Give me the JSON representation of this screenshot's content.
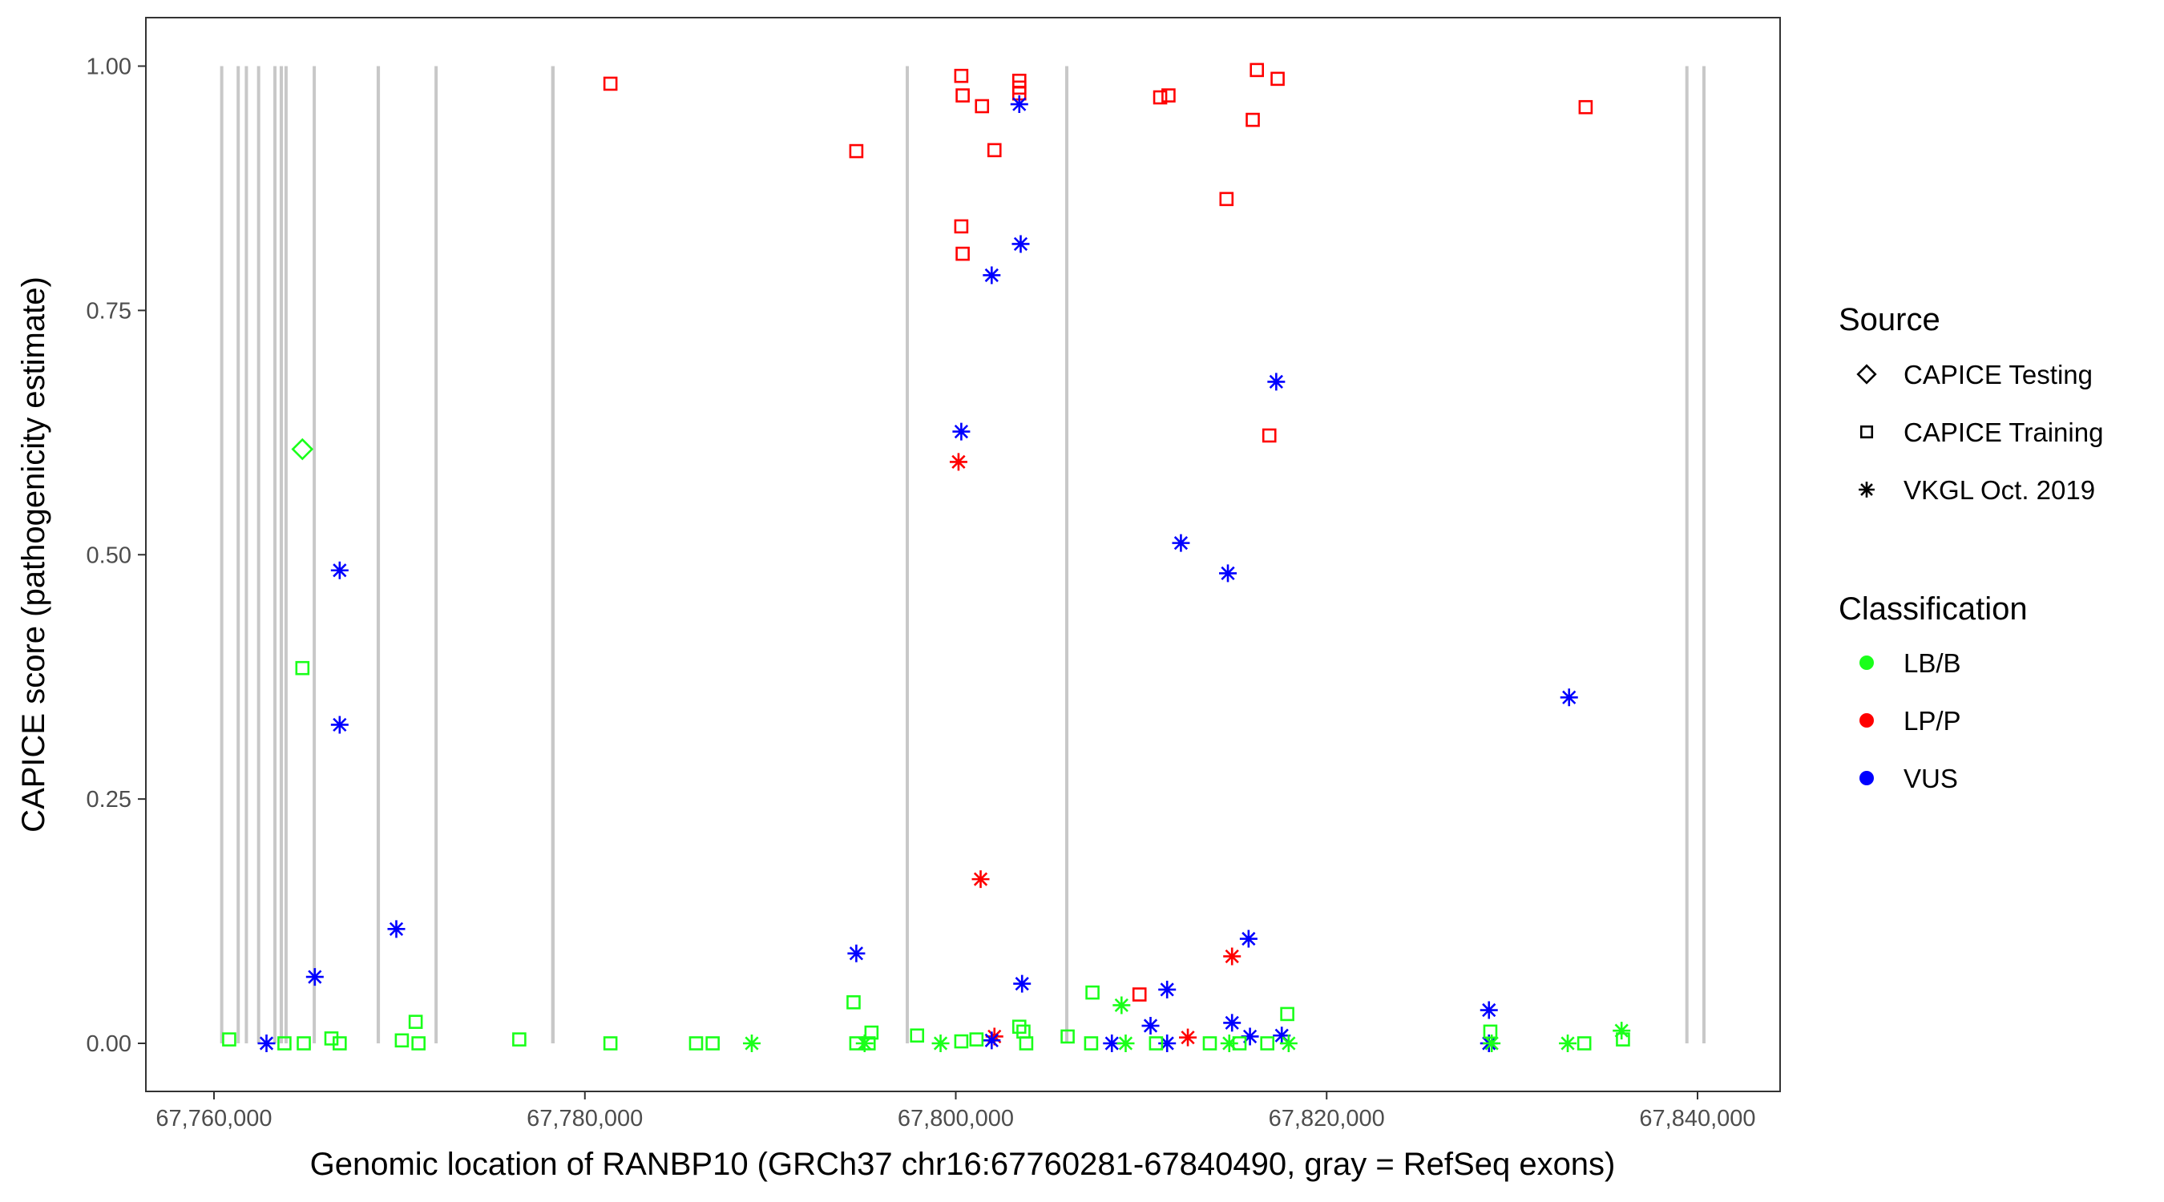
{
  "chart_data": {
    "type": "scatter",
    "title": "",
    "xlabel": "Genomic location of RANBP10 (GRCh37 chr16:67760281-67840490, gray = RefSeq exons)",
    "ylabel": "CAPICE score (pathogenicity estimate)",
    "xlim": [
      67756500,
      67846500
    ],
    "ylim": [
      -0.045,
      1.047
    ],
    "x_ticks": [
      67760000,
      67780000,
      67800000,
      67820000,
      67840000
    ],
    "x_tick_labels": [
      "67,760,000",
      "67,780,000",
      "67,800,000",
      "67,820,000",
      "67,840,000"
    ],
    "y_ticks": [
      0,
      0.25,
      0.5,
      0.75,
      1.0
    ],
    "y_tick_labels": [
      "0.00",
      "0.25",
      "0.50",
      "0.75",
      "1.00"
    ],
    "grid": false,
    "legend_placement": "right",
    "exon_color": "#c8c8c8",
    "exons": [
      {
        "start": 67760330,
        "end": 67760480
      },
      {
        "start": 67761220,
        "end": 67761330
      },
      {
        "start": 67761660,
        "end": 67761790
      },
      {
        "start": 67762320,
        "end": 67762470
      },
      {
        "start": 67763200,
        "end": 67763370
      },
      {
        "start": 67763540,
        "end": 67763720
      },
      {
        "start": 67763800,
        "end": 67763960
      },
      {
        "start": 67765320,
        "end": 67765470
      },
      {
        "start": 67768770,
        "end": 67768950
      },
      {
        "start": 67771890,
        "end": 67772000
      },
      {
        "start": 67778180,
        "end": 67778370
      },
      {
        "start": 67797300,
        "end": 67797440
      },
      {
        "start": 67805900,
        "end": 67806050
      },
      {
        "start": 67839340,
        "end": 67839490
      },
      {
        "start": 67840260,
        "end": 67840410
      }
    ],
    "legends": {
      "source": {
        "title": "Source",
        "entries": [
          {
            "label": "CAPICE Testing",
            "shape": "diamond"
          },
          {
            "label": "CAPICE Training",
            "shape": "square"
          },
          {
            "label": "VKGL Oct. 2019",
            "shape": "asterisk"
          }
        ]
      },
      "classification": {
        "title": "Classification",
        "entries": [
          {
            "label": "LB/B",
            "color": "#1aff1a"
          },
          {
            "label": "LP/P",
            "color": "#ff0000"
          },
          {
            "label": "VUS",
            "color": "#0000ff"
          }
        ]
      }
    },
    "points": [
      {
        "x": 67764767,
        "y": 0.608,
        "source": "CAPICE Testing",
        "class": "LB/B"
      },
      {
        "x": 67781378,
        "y": 0.982,
        "source": "CAPICE Training",
        "class": "LP/P"
      },
      {
        "x": 67794637,
        "y": 0.913,
        "source": "CAPICE Training",
        "class": "LP/P"
      },
      {
        "x": 67800298,
        "y": 0.99,
        "source": "CAPICE Training",
        "class": "LP/P"
      },
      {
        "x": 67800372,
        "y": 0.97,
        "source": "CAPICE Training",
        "class": "LP/P"
      },
      {
        "x": 67801415,
        "y": 0.959,
        "source": "CAPICE Training",
        "class": "LP/P"
      },
      {
        "x": 67802086,
        "y": 0.914,
        "source": "CAPICE Training",
        "class": "LP/P"
      },
      {
        "x": 67803426,
        "y": 0.985,
        "source": "CAPICE Training",
        "class": "LP/P"
      },
      {
        "x": 67803426,
        "y": 0.978,
        "source": "CAPICE Training",
        "class": "LP/P"
      },
      {
        "x": 67803426,
        "y": 0.972,
        "source": "CAPICE Training",
        "class": "LP/P"
      },
      {
        "x": 67800298,
        "y": 0.836,
        "source": "CAPICE Training",
        "class": "LP/P"
      },
      {
        "x": 67800372,
        "y": 0.808,
        "source": "CAPICE Training",
        "class": "LP/P"
      },
      {
        "x": 67811024,
        "y": 0.968,
        "source": "CAPICE Training",
        "class": "LP/P"
      },
      {
        "x": 67811471,
        "y": 0.97,
        "source": "CAPICE Training",
        "class": "LP/P"
      },
      {
        "x": 67816238,
        "y": 0.996,
        "source": "CAPICE Training",
        "class": "LP/P"
      },
      {
        "x": 67817356,
        "y": 0.987,
        "source": "CAPICE Training",
        "class": "LP/P"
      },
      {
        "x": 67816015,
        "y": 0.945,
        "source": "CAPICE Training",
        "class": "LP/P"
      },
      {
        "x": 67814600,
        "y": 0.864,
        "source": "CAPICE Training",
        "class": "LP/P"
      },
      {
        "x": 67816909,
        "y": 0.622,
        "source": "CAPICE Training",
        "class": "LP/P"
      },
      {
        "x": 67833966,
        "y": 0.958,
        "source": "CAPICE Training",
        "class": "LP/P"
      },
      {
        "x": 67809907,
        "y": 0.05,
        "source": "CAPICE Training",
        "class": "LP/P"
      },
      {
        "x": 67800149,
        "y": 0.595,
        "source": "VKGL Oct. 2019",
        "class": "LP/P"
      },
      {
        "x": 67801341,
        "y": 0.168,
        "source": "VKGL Oct. 2019",
        "class": "LP/P"
      },
      {
        "x": 67814898,
        "y": 0.089,
        "source": "VKGL Oct. 2019",
        "class": "LP/P"
      },
      {
        "x": 67802086,
        "y": 0.007,
        "source": "VKGL Oct. 2019",
        "class": "LP/P"
      },
      {
        "x": 67812514,
        "y": 0.006,
        "source": "VKGL Oct. 2019",
        "class": "LP/P"
      },
      {
        "x": 67803426,
        "y": 0.961,
        "source": "VKGL Oct. 2019",
        "class": "VUS"
      },
      {
        "x": 67803501,
        "y": 0.818,
        "source": "VKGL Oct. 2019",
        "class": "VUS"
      },
      {
        "x": 67801937,
        "y": 0.786,
        "source": "VKGL Oct. 2019",
        "class": "VUS"
      },
      {
        "x": 67800298,
        "y": 0.626,
        "source": "VKGL Oct. 2019",
        "class": "VUS"
      },
      {
        "x": 67817281,
        "y": 0.677,
        "source": "VKGL Oct. 2019",
        "class": "VUS"
      },
      {
        "x": 67812142,
        "y": 0.512,
        "source": "VKGL Oct. 2019",
        "class": "VUS"
      },
      {
        "x": 67814674,
        "y": 0.481,
        "source": "VKGL Oct. 2019",
        "class": "VUS"
      },
      {
        "x": 67766778,
        "y": 0.484,
        "source": "VKGL Oct. 2019",
        "class": "VUS"
      },
      {
        "x": 67766778,
        "y": 0.326,
        "source": "VKGL Oct. 2019",
        "class": "VUS"
      },
      {
        "x": 67765438,
        "y": 0.068,
        "source": "VKGL Oct. 2019",
        "class": "VUS"
      },
      {
        "x": 67769832,
        "y": 0.117,
        "source": "VKGL Oct. 2019",
        "class": "VUS"
      },
      {
        "x": 67794637,
        "y": 0.092,
        "source": "VKGL Oct. 2019",
        "class": "VUS"
      },
      {
        "x": 67803575,
        "y": 0.061,
        "source": "VKGL Oct. 2019",
        "class": "VUS"
      },
      {
        "x": 67815791,
        "y": 0.107,
        "source": "VKGL Oct. 2019",
        "class": "VUS"
      },
      {
        "x": 67811397,
        "y": 0.055,
        "source": "VKGL Oct. 2019",
        "class": "VUS"
      },
      {
        "x": 67810503,
        "y": 0.018,
        "source": "VKGL Oct. 2019",
        "class": "VUS"
      },
      {
        "x": 67814898,
        "y": 0.021,
        "source": "VKGL Oct. 2019",
        "class": "VUS"
      },
      {
        "x": 67833073,
        "y": 0.354,
        "source": "VKGL Oct. 2019",
        "class": "VUS"
      },
      {
        "x": 67828752,
        "y": 0.034,
        "source": "VKGL Oct. 2019",
        "class": "VUS"
      },
      {
        "x": 67817579,
        "y": 0.008,
        "source": "VKGL Oct. 2019",
        "class": "VUS"
      },
      {
        "x": 67815865,
        "y": 0.007,
        "source": "VKGL Oct. 2019",
        "class": "VUS"
      },
      {
        "x": 67808417,
        "y": 0.0,
        "source": "VKGL Oct. 2019",
        "class": "VUS"
      },
      {
        "x": 67811397,
        "y": 0.0,
        "source": "VKGL Oct. 2019",
        "class": "VUS"
      },
      {
        "x": 67762831,
        "y": 0.0,
        "source": "VKGL Oct. 2019",
        "class": "VUS"
      },
      {
        "x": 67828752,
        "y": 0.0,
        "source": "VKGL Oct. 2019",
        "class": "VUS"
      },
      {
        "x": 67801937,
        "y": 0.003,
        "source": "VKGL Oct. 2019",
        "class": "VUS"
      },
      {
        "x": 67764767,
        "y": 0.384,
        "source": "CAPICE Training",
        "class": "LB/B"
      },
      {
        "x": 67770875,
        "y": 0.022,
        "source": "CAPICE Training",
        "class": "LB/B"
      },
      {
        "x": 67766331,
        "y": 0.005,
        "source": "CAPICE Training",
        "class": "LB/B"
      },
      {
        "x": 67760819,
        "y": 0.004,
        "source": "CAPICE Training",
        "class": "LB/B"
      },
      {
        "x": 67763799,
        "y": 0.0,
        "source": "CAPICE Training",
        "class": "LB/B"
      },
      {
        "x": 67764842,
        "y": 0.0,
        "source": "CAPICE Training",
        "class": "LB/B"
      },
      {
        "x": 67766778,
        "y": 0.0,
        "source": "CAPICE Training",
        "class": "LB/B"
      },
      {
        "x": 67770130,
        "y": 0.003,
        "source": "CAPICE Training",
        "class": "LB/B"
      },
      {
        "x": 67771028,
        "y": 0.0,
        "source": "CAPICE Training",
        "class": "LB/B"
      },
      {
        "x": 67776462,
        "y": 0.004,
        "source": "CAPICE Training",
        "class": "LB/B"
      },
      {
        "x": 67781378,
        "y": 0.0,
        "source": "CAPICE Training",
        "class": "LB/B"
      },
      {
        "x": 67785996,
        "y": 0.0,
        "source": "CAPICE Training",
        "class": "LB/B"
      },
      {
        "x": 67786890,
        "y": 0.0,
        "source": "CAPICE Training",
        "class": "LB/B"
      },
      {
        "x": 67794488,
        "y": 0.042,
        "source": "CAPICE Training",
        "class": "LB/B"
      },
      {
        "x": 67795456,
        "y": 0.011,
        "source": "CAPICE Training",
        "class": "LB/B"
      },
      {
        "x": 67794637,
        "y": 0.0,
        "source": "CAPICE Training",
        "class": "LB/B"
      },
      {
        "x": 67795300,
        "y": 0.0,
        "source": "CAPICE Training",
        "class": "LB/B"
      },
      {
        "x": 67797914,
        "y": 0.008,
        "source": "CAPICE Training",
        "class": "LB/B"
      },
      {
        "x": 67800298,
        "y": 0.002,
        "source": "CAPICE Training",
        "class": "LB/B"
      },
      {
        "x": 67801117,
        "y": 0.004,
        "source": "CAPICE Training",
        "class": "LB/B"
      },
      {
        "x": 67803426,
        "y": 0.017,
        "source": "CAPICE Training",
        "class": "LB/B"
      },
      {
        "x": 67803650,
        "y": 0.012,
        "source": "CAPICE Training",
        "class": "LB/B"
      },
      {
        "x": 67803800,
        "y": 0.0,
        "source": "CAPICE Training",
        "class": "LB/B"
      },
      {
        "x": 67806033,
        "y": 0.007,
        "source": "CAPICE Training",
        "class": "LB/B"
      },
      {
        "x": 67807373,
        "y": 0.052,
        "source": "CAPICE Training",
        "class": "LB/B"
      },
      {
        "x": 67807300,
        "y": 0.0,
        "source": "CAPICE Training",
        "class": "LB/B"
      },
      {
        "x": 67810800,
        "y": 0.0,
        "source": "CAPICE Training",
        "class": "LB/B"
      },
      {
        "x": 67813700,
        "y": 0.0,
        "source": "CAPICE Training",
        "class": "LB/B"
      },
      {
        "x": 67815300,
        "y": 0.0,
        "source": "CAPICE Training",
        "class": "LB/B"
      },
      {
        "x": 67816800,
        "y": 0.0,
        "source": "CAPICE Training",
        "class": "LB/B"
      },
      {
        "x": 67817877,
        "y": 0.03,
        "source": "CAPICE Training",
        "class": "LB/B"
      },
      {
        "x": 67828826,
        "y": 0.012,
        "source": "CAPICE Training",
        "class": "LB/B"
      },
      {
        "x": 67833892,
        "y": 0.0,
        "source": "CAPICE Training",
        "class": "LB/B"
      },
      {
        "x": 67835978,
        "y": 0.004,
        "source": "CAPICE Training",
        "class": "LB/B"
      },
      {
        "x": 67808939,
        "y": 0.039,
        "source": "VKGL Oct. 2019",
        "class": "LB/B"
      },
      {
        "x": 67835903,
        "y": 0.013,
        "source": "VKGL Oct. 2019",
        "class": "LB/B"
      },
      {
        "x": 67789000,
        "y": 0.0,
        "source": "VKGL Oct. 2019",
        "class": "LB/B"
      },
      {
        "x": 67795084,
        "y": 0.0,
        "source": "VKGL Oct. 2019",
        "class": "LB/B"
      },
      {
        "x": 67799181,
        "y": 0.0,
        "source": "VKGL Oct. 2019",
        "class": "LB/B"
      },
      {
        "x": 67809162,
        "y": 0.0,
        "source": "VKGL Oct. 2019",
        "class": "LB/B"
      },
      {
        "x": 67814749,
        "y": 0.0,
        "source": "VKGL Oct. 2019",
        "class": "LB/B"
      },
      {
        "x": 67817952,
        "y": 0.0,
        "source": "VKGL Oct. 2019",
        "class": "LB/B"
      },
      {
        "x": 67833000,
        "y": 0.0,
        "source": "VKGL Oct. 2019",
        "class": "LB/B"
      },
      {
        "x": 67828900,
        "y": 0.0,
        "source": "VKGL Oct. 2019",
        "class": "LB/B"
      }
    ]
  }
}
